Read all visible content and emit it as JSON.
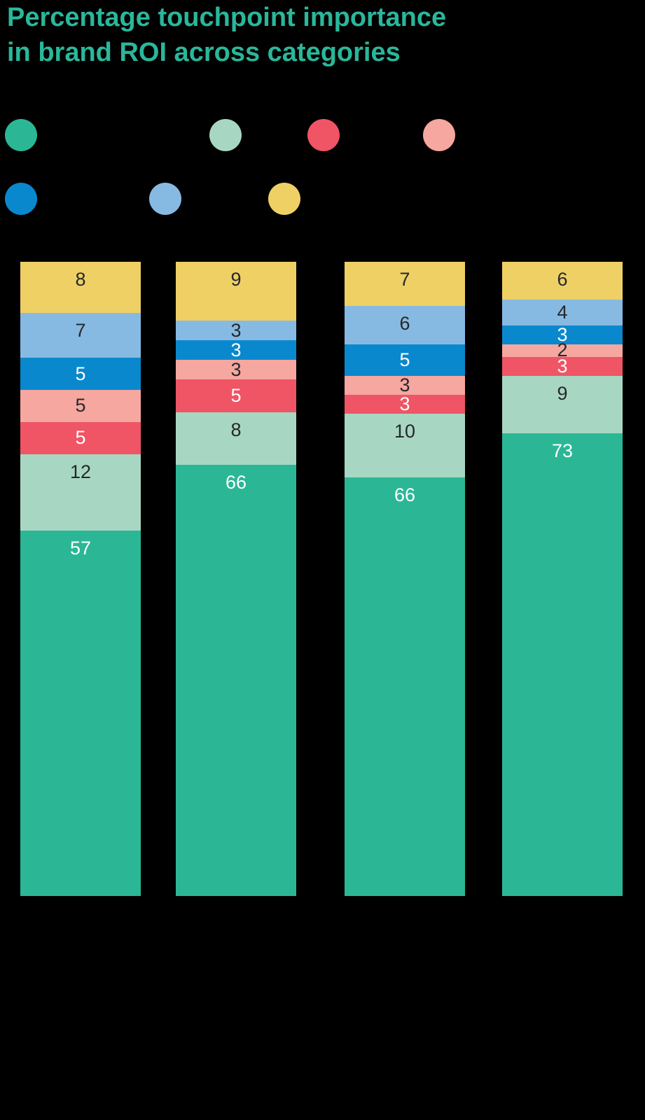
{
  "title": {
    "line1": "Percentage touchpoint importance",
    "line2": "in brand ROI across categories"
  },
  "colors": {
    "background": "#000000",
    "title": "#2AB79B",
    "label_dark": "#26282A",
    "label_light": "#FFFFFF"
  },
  "legend": {
    "labels_visible": false,
    "row1": [
      {
        "name": "teal",
        "color": "#2BB795"
      },
      {
        "name": "mint",
        "color": "#A7D7C3"
      },
      {
        "name": "red",
        "color": "#EF5565"
      },
      {
        "name": "pink",
        "color": "#F6A79F"
      }
    ],
    "row2": [
      {
        "name": "blue",
        "color": "#0A88CE"
      },
      {
        "name": "light-blue",
        "color": "#87BAE2"
      },
      {
        "name": "yellow",
        "color": "#EFD065"
      }
    ]
  },
  "chart_data": {
    "type": "bar",
    "stacked": true,
    "orientation": "vertical",
    "title": "Percentage touchpoint importance in brand ROI across categories",
    "categories": [
      "",
      "",
      "",
      ""
    ],
    "category_labels_visible": false,
    "axes_visible": false,
    "grid": false,
    "legend_position": "top",
    "unit": "percent",
    "series_bottom_to_top": [
      {
        "name": "teal",
        "color": "#2BB795",
        "label_color": "light",
        "values": [
          57,
          66,
          66,
          73
        ]
      },
      {
        "name": "mint",
        "color": "#A7D7C3",
        "label_color": "dark",
        "values": [
          12,
          8,
          10,
          9
        ]
      },
      {
        "name": "red",
        "color": "#EF5565",
        "label_color": "light",
        "values": [
          5,
          5,
          3,
          3
        ]
      },
      {
        "name": "pink",
        "color": "#F6A79F",
        "label_color": "dark",
        "values": [
          5,
          3,
          3,
          2
        ]
      },
      {
        "name": "blue",
        "color": "#0A88CE",
        "label_color": "light",
        "values": [
          5,
          3,
          5,
          3
        ]
      },
      {
        "name": "light-blue",
        "color": "#87BAE2",
        "label_color": "dark",
        "values": [
          7,
          3,
          6,
          4
        ]
      },
      {
        "name": "yellow",
        "color": "#EFD065",
        "label_color": "dark",
        "values": [
          8,
          9,
          7,
          6
        ]
      }
    ]
  }
}
